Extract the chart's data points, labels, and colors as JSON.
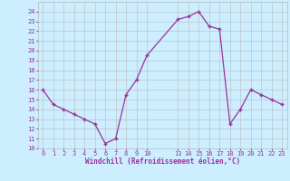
{
  "x": [
    0,
    1,
    2,
    3,
    4,
    5,
    6,
    7,
    8,
    9,
    10,
    13,
    14,
    15,
    16,
    17,
    18,
    19,
    20,
    21,
    22,
    23
  ],
  "y": [
    16,
    14.5,
    14,
    13.5,
    13,
    12.5,
    10.5,
    11,
    15.5,
    17,
    19.5,
    23.2,
    23.5,
    24,
    22.5,
    22.2,
    12.5,
    14,
    16,
    15.5,
    15,
    14.5
  ],
  "line_color": "#993399",
  "marker_color": "#993399",
  "bg_color": "#cceeff",
  "grid_color": "#bbbbbb",
  "xlabel": "Windchill (Refroidissement éolien,°C)",
  "ylim": [
    10,
    25
  ],
  "xlim": [
    -0.5,
    23.5
  ],
  "yticks": [
    10,
    11,
    12,
    13,
    14,
    15,
    16,
    17,
    18,
    19,
    20,
    21,
    22,
    23,
    24
  ],
  "xticks": [
    0,
    1,
    2,
    3,
    4,
    5,
    6,
    7,
    8,
    9,
    10,
    13,
    14,
    15,
    16,
    17,
    18,
    19,
    20,
    21,
    22,
    23
  ],
  "xtick_labels": [
    "0",
    "1",
    "2",
    "3",
    "4",
    "5",
    "6",
    "7",
    "8",
    "9",
    "10",
    "13",
    "14",
    "15",
    "16",
    "17",
    "18",
    "19",
    "20",
    "21",
    "22",
    "23"
  ],
  "font_color": "#993399",
  "tick_fontsize": 5.0,
  "xlabel_fontsize": 5.5
}
